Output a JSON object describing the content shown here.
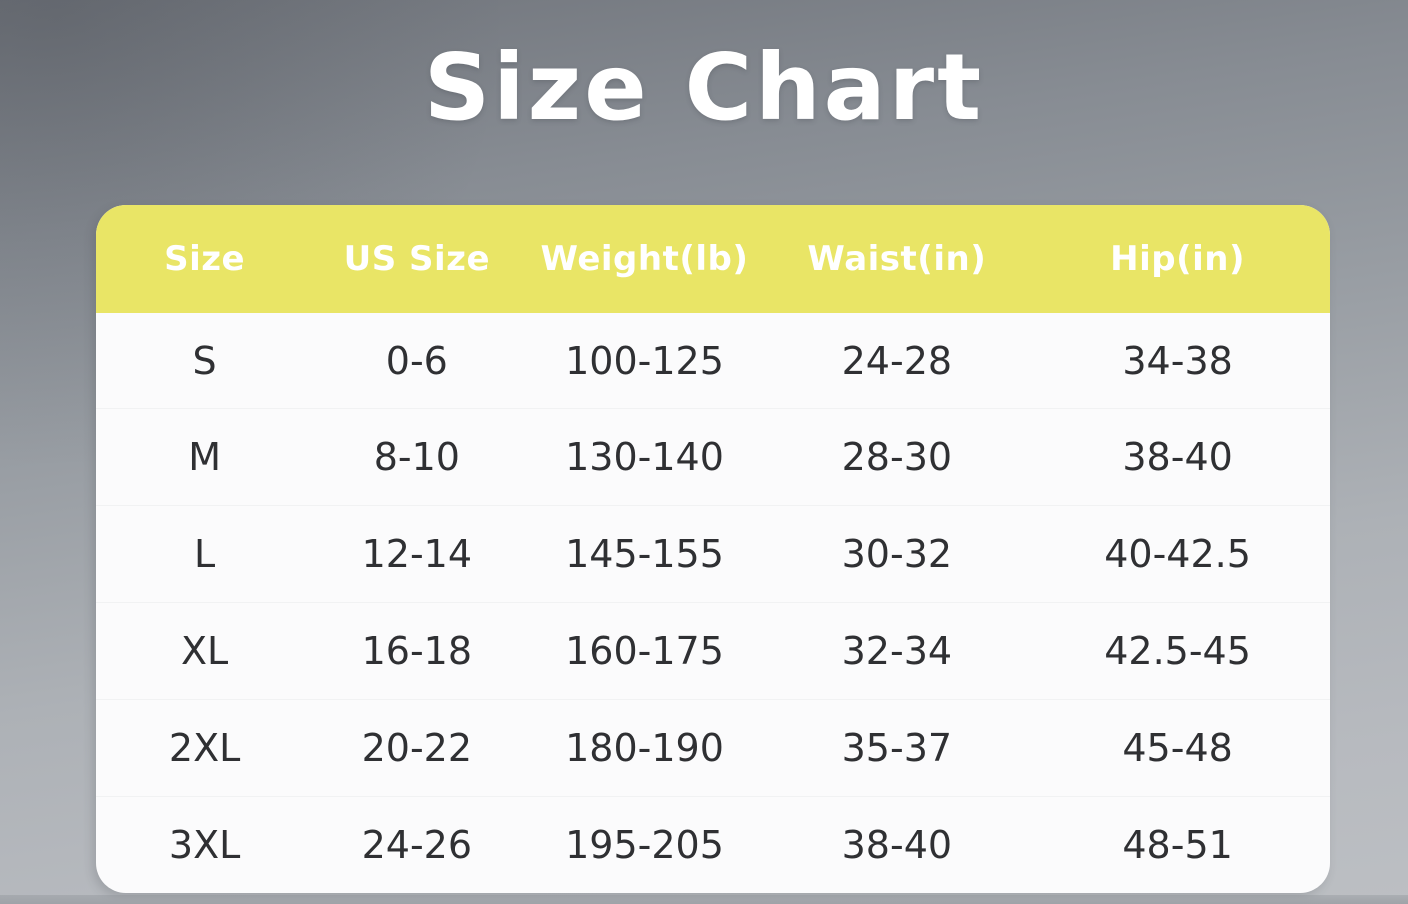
{
  "title": "Size Chart",
  "colors": {
    "header_bg": "#e9e566",
    "header_text": "#ffffff",
    "card_bg": "#fbfbfc",
    "body_text": "#2f3033",
    "title_text": "#ffffff",
    "background_top": "#70747b",
    "background_bottom": "#bcbfc3"
  },
  "table": {
    "headers": [
      "Size",
      "US Size",
      "Weight(lb)",
      "Waist(in)",
      "Hip(in)"
    ],
    "rows": [
      [
        "S",
        "0-6",
        "100-125",
        "24-28",
        "34-38"
      ],
      [
        "M",
        "8-10",
        "130-140",
        "28-30",
        "38-40"
      ],
      [
        "L",
        "12-14",
        "145-155",
        "30-32",
        "40-42.5"
      ],
      [
        "XL",
        "16-18",
        "160-175",
        "32-34",
        "42.5-45"
      ],
      [
        "2XL",
        "20-22",
        "180-190",
        "35-37",
        "45-48"
      ],
      [
        "3XL",
        "24-26",
        "195-205",
        "38-40",
        "48-51"
      ]
    ]
  },
  "chart_data": {
    "type": "table",
    "title": "Size Chart",
    "columns": [
      "Size",
      "US Size",
      "Weight(lb)",
      "Waist(in)",
      "Hip(in)"
    ],
    "rows": [
      [
        "S",
        "0-6",
        "100-125",
        "24-28",
        "34-38"
      ],
      [
        "M",
        "8-10",
        "130-140",
        "28-30",
        "38-40"
      ],
      [
        "L",
        "12-14",
        "145-155",
        "30-32",
        "40-42.5"
      ],
      [
        "XL",
        "16-18",
        "160-175",
        "32-34",
        "42.5-45"
      ],
      [
        "2XL",
        "20-22",
        "180-190",
        "35-37",
        "45-48"
      ],
      [
        "3XL",
        "24-26",
        "195-205",
        "38-40",
        "48-51"
      ]
    ]
  }
}
